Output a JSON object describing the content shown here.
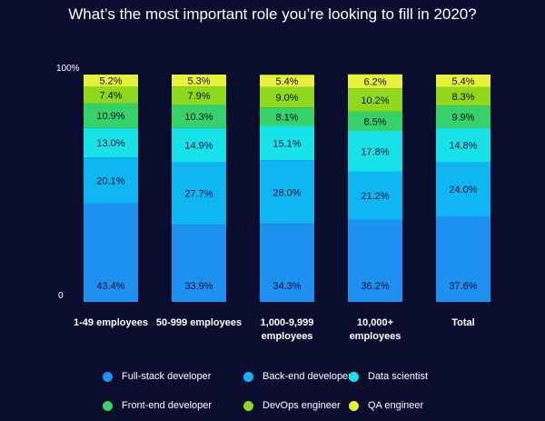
{
  "title": "What’s the most important role you’re looking to fill in 2020?",
  "chart_data": {
    "type": "bar",
    "stacked": true,
    "title": "What’s the most important role you’re looking to fill in 2020?",
    "categories": [
      [
        "1-49 employees"
      ],
      [
        "50-999 employees"
      ],
      [
        "1,000-9,999",
        "employees"
      ],
      [
        "10,000+",
        "employees"
      ],
      [
        "Total"
      ]
    ],
    "ytick_labels": {
      "top": "100%",
      "bottom": "0"
    },
    "ylim": [
      0,
      100
    ],
    "grid": false,
    "legend_position": "bottom",
    "series": [
      {
        "name": "Full-stack developer",
        "color": "#1e90f0",
        "values": [
          43.4,
          33.9,
          34.3,
          36.2,
          37.6
        ],
        "labels": [
          "43.4%",
          "33.9%",
          "34.3%",
          "36.2%",
          "37.6%"
        ]
      },
      {
        "name": "Back-end developer",
        "color": "#10b6f2",
        "values": [
          20.1,
          27.7,
          28.0,
          21.2,
          24.0
        ],
        "labels": [
          "20.1%",
          "27.7%",
          "28.0%",
          "21.2%",
          "24.0%"
        ]
      },
      {
        "name": "Data scientist",
        "color": "#17e2e8",
        "values": [
          13.0,
          14.9,
          15.1,
          17.8,
          14.8
        ],
        "labels": [
          "13.0%",
          "14.9%",
          "15.1%",
          "17.8%",
          "14.8%"
        ]
      },
      {
        "name": "Front-end developer",
        "color": "#37d16a",
        "values": [
          10.9,
          10.3,
          8.1,
          8.5,
          9.9
        ],
        "labels": [
          "10.9%",
          "10.3%",
          "8.1%",
          "8.5%",
          "9.9%"
        ]
      },
      {
        "name": "DevOps engineer",
        "color": "#8fd81b",
        "values": [
          7.4,
          7.9,
          9.0,
          10.2,
          8.3
        ],
        "labels": [
          "7.4%",
          "7.9%",
          "9.0%",
          "10.2%",
          "8.3%"
        ]
      },
      {
        "name": "QA engineer",
        "color": "#e8f13a",
        "values": [
          5.2,
          5.3,
          5.4,
          6.2,
          5.4
        ],
        "labels": [
          "5.2%",
          "5.3%",
          "5.4%",
          "6.2%",
          "5.4%"
        ]
      }
    ]
  },
  "legend": {
    "rows": [
      [
        "Full-stack developer",
        "Back-end developer",
        "Data scientist"
      ],
      [
        "Front-end developer",
        "DevOps engineer",
        "QA engineer"
      ]
    ]
  }
}
